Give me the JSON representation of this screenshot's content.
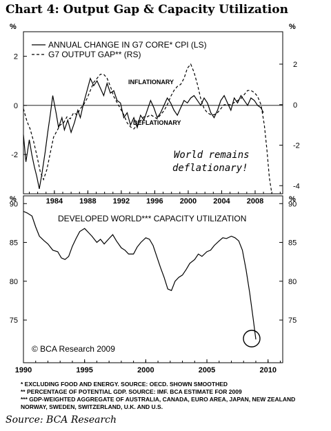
{
  "title": "Chart 4:  Output Gap & Capacity Utilization",
  "footnotes": [
    "*   EXCLUDING FOOD AND ENERGY. SOURCE: OECD. SHOWN SMOOTHED",
    "**  PERCENTAGE OF POTENTIAL GDP. SOURCE: IMF. BCA ESTIMATE FOR 2009",
    "***  GDP-WEIGHTED AGGREGATE OF AUSTRALIA, CANADA, EURO AREA, JAPAN, NEW ZEALAND",
    "      NORWAY, SWEDEN, SWITZERLAND, U.K. AND U.S."
  ],
  "source": "Source: BCA Research",
  "colors": {
    "line": "#000000",
    "background": "#ffffff"
  },
  "chart_data": [
    {
      "type": "line",
      "unit_left": "%",
      "unit_right": "%",
      "legend": [
        "ANNUAL CHANGE IN G7 CORE* CPI (LS)",
        "G7 OUTPUT GAP** (RS)"
      ],
      "legend_placement": "top-left",
      "annotations": [
        "INFLATIONARY",
        "DEFLATIONARY",
        "World remains",
        "deflationary!"
      ],
      "xlim": [
        1980.3,
        2011.3
      ],
      "xticks": [
        1984,
        1988,
        1992,
        1996,
        2000,
        2004,
        2008
      ],
      "ylim_left": [
        -3.6,
        3.0
      ],
      "yticks_left": [
        2,
        0,
        -2
      ],
      "ylim_right": [
        -4.4,
        3.6
      ],
      "yticks_right": [
        2,
        0,
        -2,
        -4
      ],
      "series": [
        {
          "name": "ANNUAL CHANGE IN G7 CORE* CPI (LS)",
          "style": "solid",
          "axis": "left",
          "x": [
            1980.3,
            1980.6,
            1981.0,
            1981.3,
            1981.6,
            1981.9,
            1982.2,
            1982.5,
            1982.9,
            1983.2,
            1983.5,
            1983.8,
            1984.2,
            1984.5,
            1984.9,
            1985.2,
            1985.6,
            1986.0,
            1986.4,
            1986.8,
            1987.1,
            1987.5,
            1987.9,
            1988.3,
            1988.7,
            1989.1,
            1989.5,
            1989.9,
            1990.3,
            1990.7,
            1991.1,
            1991.5,
            1991.9,
            1992.3,
            1992.7,
            1993.1,
            1993.5,
            1993.9,
            1994.3,
            1994.7,
            1995.1,
            1995.5,
            1995.9,
            1996.3,
            1996.7,
            1997.1,
            1997.5,
            1997.9,
            1998.3,
            1998.7,
            1999.1,
            1999.5,
            1999.9,
            2000.3,
            2000.7,
            2001.1,
            2001.5,
            2001.9,
            2002.3,
            2002.7,
            2003.1,
            2003.5,
            2003.9,
            2004.3,
            2004.7,
            2005.1,
            2005.5,
            2005.9,
            2006.3,
            2006.7,
            2007.1,
            2007.5,
            2007.9,
            2008.3,
            2008.7,
            2009.0
          ],
          "values": [
            -1.2,
            -2.3,
            -1.4,
            -2.0,
            -2.5,
            -2.9,
            -3.4,
            -2.8,
            -1.9,
            -1.1,
            -0.4,
            0.4,
            -0.3,
            -0.9,
            -0.5,
            -1.0,
            -0.6,
            -1.1,
            -0.7,
            -0.2,
            -0.5,
            0.1,
            0.6,
            1.1,
            0.8,
            1.0,
            0.7,
            0.4,
            0.9,
            0.5,
            0.6,
            0.2,
            0.1,
            -0.5,
            -0.3,
            -0.8,
            -0.5,
            -0.9,
            -0.4,
            -0.6,
            -0.2,
            0.2,
            -0.1,
            -0.5,
            -0.3,
            0.0,
            0.3,
            0.1,
            -0.2,
            -0.4,
            -0.1,
            0.2,
            0.1,
            0.3,
            0.4,
            0.2,
            0.0,
            0.3,
            0.1,
            -0.3,
            -0.5,
            -0.2,
            0.2,
            0.4,
            0.1,
            -0.2,
            0.3,
            0.1,
            0.4,
            0.2,
            0.0,
            0.3,
            0.2,
            0.0,
            -0.1,
            -0.3
          ]
        },
        {
          "name": "G7 OUTPUT GAP** (RS)",
          "style": "dashed",
          "axis": "right",
          "x": [
            1980.3,
            1980.7,
            1981.1,
            1981.5,
            1981.9,
            1982.3,
            1982.7,
            1983.1,
            1983.5,
            1983.9,
            1984.3,
            1984.7,
            1985.1,
            1985.5,
            1985.9,
            1986.3,
            1986.7,
            1987.1,
            1987.5,
            1987.9,
            1988.3,
            1988.7,
            1989.1,
            1989.5,
            1989.9,
            1990.3,
            1990.7,
            1991.1,
            1991.5,
            1991.9,
            1992.3,
            1992.7,
            1993.1,
            1993.5,
            1993.9,
            1994.3,
            1994.7,
            1995.1,
            1995.5,
            1995.9,
            1996.3,
            1996.7,
            1997.1,
            1997.5,
            1997.9,
            1998.3,
            1998.7,
            1999.1,
            1999.5,
            1999.9,
            2000.3,
            2000.7,
            2001.1,
            2001.5,
            2001.9,
            2002.3,
            2002.7,
            2003.1,
            2003.5,
            2003.9,
            2004.3,
            2004.7,
            2005.1,
            2005.5,
            2005.9,
            2006.3,
            2006.7,
            2007.1,
            2007.5,
            2007.9,
            2008.3,
            2008.7,
            2009.1,
            2009.4,
            2009.7,
            2010.0
          ],
          "values": [
            -0.2,
            -0.8,
            -1.2,
            -1.8,
            -2.5,
            -3.3,
            -3.7,
            -3.2,
            -2.4,
            -1.6,
            -1.3,
            -1.0,
            -0.9,
            -0.6,
            -0.7,
            -0.4,
            -0.5,
            -0.2,
            0.0,
            0.3,
            0.7,
            1.1,
            1.3,
            1.5,
            1.5,
            1.3,
            0.9,
            0.4,
            0.1,
            -0.2,
            -0.5,
            -0.9,
            -1.1,
            -1.2,
            -1.0,
            -0.8,
            -0.6,
            -0.6,
            -0.5,
            -0.6,
            -0.7,
            -0.5,
            -0.3,
            0.0,
            0.4,
            0.7,
            0.9,
            1.0,
            1.3,
            1.8,
            2.0,
            1.6,
            1.0,
            0.3,
            -0.2,
            -0.4,
            -0.5,
            -0.5,
            -0.4,
            -0.2,
            0.0,
            0.0,
            0.0,
            0.1,
            0.2,
            0.3,
            0.5,
            0.7,
            0.7,
            0.6,
            0.4,
            0.0,
            -1.0,
            -2.2,
            -3.6,
            -4.4
          ]
        }
      ]
    },
    {
      "type": "line",
      "unit_left": "%",
      "unit_right": "%",
      "title": "DEVELOPED WORLD*** CAPACITY UTILIZATION",
      "annotations": [
        "© BCA Research 2009"
      ],
      "xlim": [
        1990,
        2011.2
      ],
      "xticks": [
        1990,
        1995,
        2000,
        2005,
        2010
      ],
      "ylim": [
        69.5,
        91.0
      ],
      "yticks": [
        90,
        85,
        80,
        75
      ],
      "series": [
        {
          "name": "DEVELOPED WORLD*** CAPACITY UTILIZATION",
          "style": "solid",
          "x": [
            1990.0,
            1990.3,
            1990.7,
            1991.0,
            1991.3,
            1991.7,
            1992.0,
            1992.4,
            1992.8,
            1993.1,
            1993.4,
            1993.7,
            1994.0,
            1994.3,
            1994.6,
            1995.0,
            1995.3,
            1995.6,
            1996.0,
            1996.3,
            1996.6,
            1997.0,
            1997.3,
            1997.6,
            1998.0,
            1998.3,
            1998.6,
            1999.0,
            1999.3,
            1999.6,
            2000.0,
            2000.3,
            2000.6,
            2000.9,
            2001.2,
            2001.5,
            2001.8,
            2002.1,
            2002.4,
            2002.7,
            2003.0,
            2003.3,
            2003.6,
            2004.0,
            2004.3,
            2004.6,
            2005.0,
            2005.3,
            2005.6,
            2006.0,
            2006.3,
            2006.6,
            2007.0,
            2007.3,
            2007.6,
            2007.9,
            2008.2,
            2008.5,
            2008.8,
            2009.0
          ],
          "values": [
            89.0,
            88.8,
            88.4,
            87.0,
            85.8,
            85.2,
            84.8,
            84.0,
            83.8,
            83.0,
            82.8,
            83.2,
            84.5,
            85.5,
            86.4,
            86.8,
            86.3,
            85.8,
            85.0,
            85.4,
            84.8,
            85.5,
            86.0,
            85.2,
            84.3,
            84.0,
            83.5,
            83.5,
            84.4,
            85.0,
            85.6,
            85.4,
            84.6,
            83.2,
            81.8,
            80.5,
            79.0,
            78.8,
            80.0,
            80.5,
            80.8,
            81.5,
            82.3,
            82.8,
            83.5,
            83.2,
            83.8,
            84.0,
            84.6,
            85.2,
            85.6,
            85.5,
            85.8,
            85.6,
            85.2,
            84.0,
            81.5,
            78.5,
            75.0,
            72.5
          ]
        }
      ]
    }
  ]
}
